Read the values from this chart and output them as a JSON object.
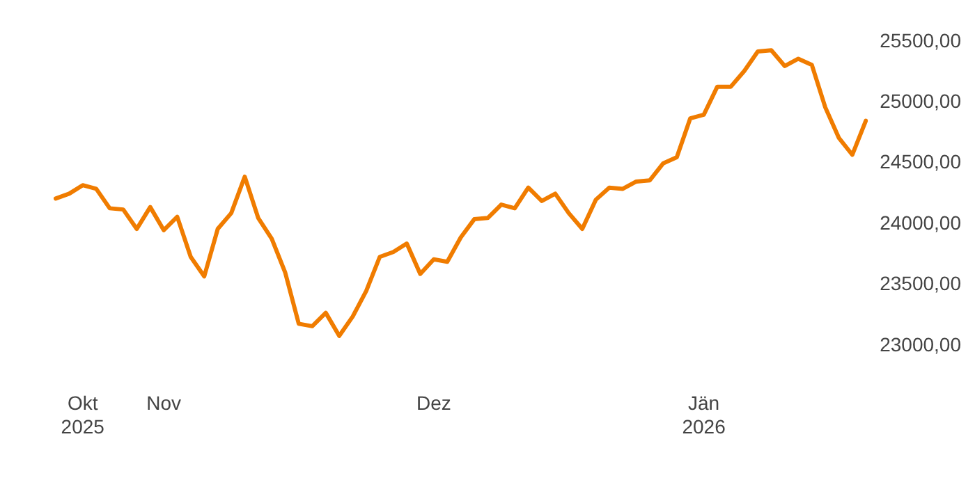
{
  "chart_data": {
    "type": "line",
    "categories": [
      null,
      null,
      "Okt 2025",
      null,
      null,
      null,
      null,
      null,
      "Nov",
      null,
      null,
      null,
      null,
      null,
      null,
      null,
      null,
      null,
      null,
      null,
      null,
      null,
      null,
      null,
      null,
      null,
      null,
      null,
      "Dez",
      null,
      null,
      null,
      null,
      null,
      null,
      null,
      null,
      null,
      null,
      null,
      null,
      null,
      null,
      null,
      null,
      null,
      null,
      null,
      "Jän 2026",
      null,
      null,
      null,
      null,
      null,
      null,
      null,
      null,
      null,
      null,
      null,
      null
    ],
    "series": [
      {
        "color": "#f07c00",
        "values": [
          24210,
          24250,
          24320,
          24290,
          24130,
          24120,
          23960,
          24140,
          23950,
          24060,
          23730,
          23570,
          23960,
          24090,
          24390,
          24050,
          23880,
          23600,
          23180,
          23160,
          23270,
          23080,
          23240,
          23450,
          23730,
          23770,
          23840,
          23590,
          23710,
          23690,
          23890,
          24040,
          24050,
          24160,
          24130,
          24300,
          24190,
          24250,
          24090,
          23960,
          24200,
          24300,
          24290,
          24350,
          24360,
          24500,
          24550,
          24870,
          24900,
          25130,
          25130,
          25260,
          25420,
          25430,
          25300,
          25360,
          25310,
          24960,
          24710,
          24570,
          24850
        ]
      }
    ],
    "ylim": [
      23000,
      25500
    ],
    "yticks": [
      {
        "value": 23000,
        "label": "23000,00"
      },
      {
        "value": 23500,
        "label": "23500,00"
      },
      {
        "value": 24000,
        "label": "24000,00"
      },
      {
        "value": 24500,
        "label": "24500,00"
      },
      {
        "value": 25000,
        "label": "25000,00"
      },
      {
        "value": 25500,
        "label": "25500,00"
      }
    ],
    "grid": false,
    "legend": false,
    "marker": "none",
    "line_style": "solid"
  }
}
